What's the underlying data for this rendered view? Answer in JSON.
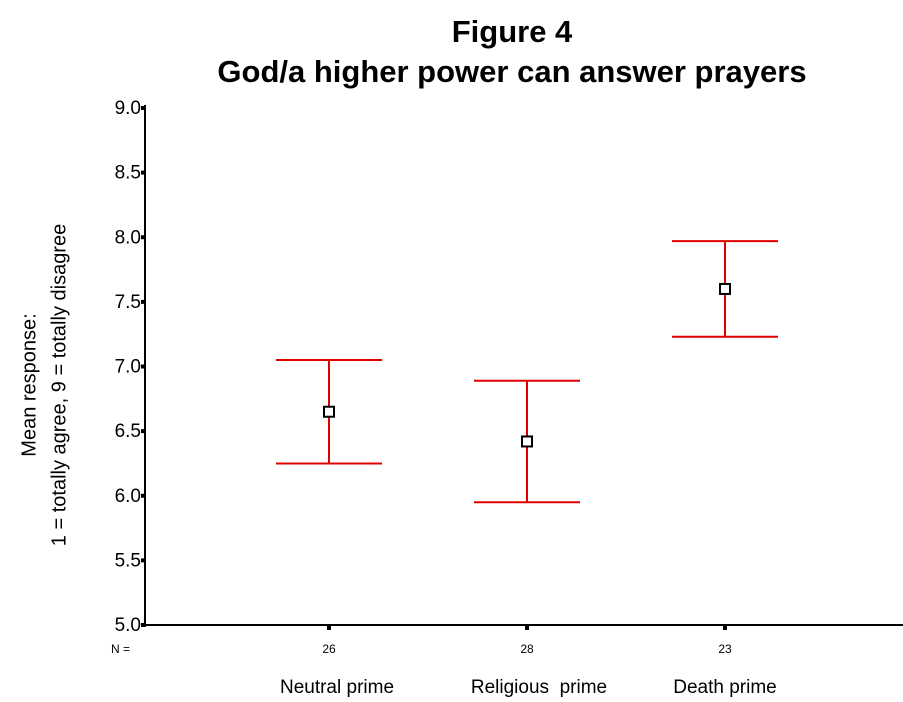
{
  "chart_data": {
    "type": "errorbar",
    "title": "Figure 4",
    "subtitle": "God/a higher power can answer prayers",
    "y_label": [
      "Mean response:",
      "1 = totally agree, 9 = totally disagree"
    ],
    "categories": [
      "Neutral prime",
      "Religious  prime",
      "Death prime"
    ],
    "values": [
      6.65,
      6.42,
      7.6
    ],
    "errors": [
      0.4,
      0.47,
      0.37
    ],
    "n_label": "N =",
    "n": [
      26,
      28,
      23
    ],
    "color": "#e00000",
    "ylim": [
      5,
      9
    ],
    "yticks": [
      {
        "value": 5,
        "label": "5.0"
      },
      5.5,
      {
        "value": 6,
        "label": "6.0"
      },
      6.5,
      {
        "value": 7,
        "label": "7.0"
      },
      7.5,
      {
        "value": 8,
        "label": "8.0"
      },
      8.5,
      {
        "value": 9,
        "label": "9.0"
      }
    ]
  }
}
